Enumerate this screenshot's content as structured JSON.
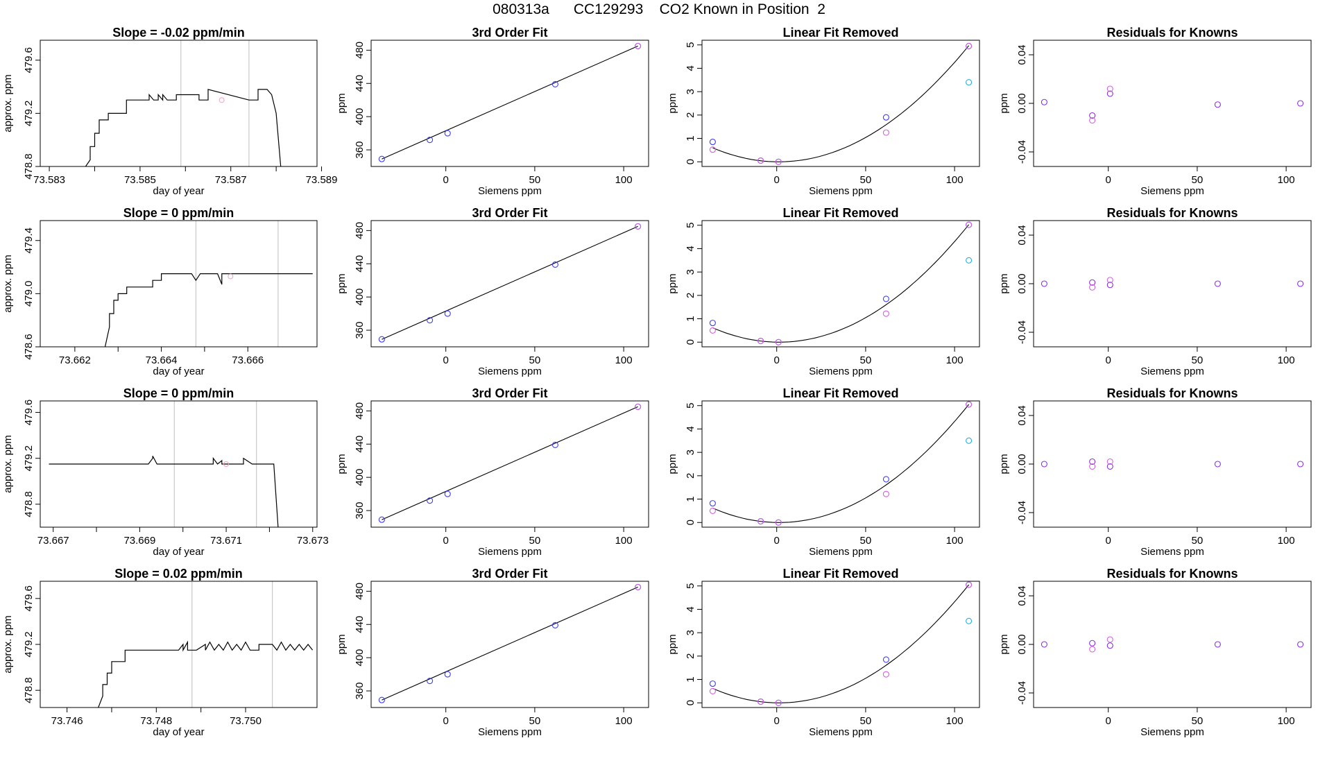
{
  "figure": {
    "title": "080313a      CC129293    CO2 Known in Position  2"
  },
  "colors": {
    "axis": "#000000",
    "trace": "#000000",
    "vline": "#c8c8c8",
    "fit_line": "#000000",
    "marker_blue": "#3c3cff",
    "marker_magenta": "#d060e0",
    "marker_cyan": "#20b0e0",
    "marker_pink": "#f2a0c0",
    "marker_purple": "#8a2be2"
  },
  "chart_data": [
    {
      "type": "line",
      "panel": "time",
      "row": 0,
      "title": "Slope =  -0.02  ppm/min",
      "xlabel": "day of year",
      "ylabel": "approx. ppm",
      "xlim": [
        73.5828,
        73.5889
      ],
      "ylim": [
        478.8,
        479.75
      ],
      "xticks": [
        73.583,
        73.585,
        73.587,
        73.589
      ],
      "xtick_labels": [
        "73.583",
        "73.585",
        "73.587",
        "73.589"
      ],
      "yticks": [
        478.8,
        479.2,
        479.6
      ],
      "ytick_labels": [
        "478.8",
        "479.2",
        "479.6"
      ],
      "vlines": [
        73.5859,
        73.5874
      ],
      "marker": {
        "x": 73.5868,
        "y": 479.3
      },
      "x": [
        73.5838,
        73.5839,
        73.5839,
        73.584,
        73.584,
        73.5841,
        73.5841,
        73.5843,
        73.5843,
        73.5847,
        73.5847,
        73.5848,
        73.5852,
        73.5852,
        73.5853,
        73.5854,
        73.5854,
        73.5855,
        73.5855,
        73.5856,
        73.5858,
        73.5858,
        73.5863,
        73.5863,
        73.5865,
        73.5865,
        73.5874,
        73.5876,
        73.5876,
        73.5878,
        73.5878,
        73.5879,
        73.588,
        73.5881
      ],
      "y": [
        478.8,
        478.85,
        478.95,
        478.95,
        479.05,
        479.05,
        479.15,
        479.15,
        479.2,
        479.2,
        479.3,
        479.3,
        479.3,
        479.34,
        479.3,
        479.3,
        479.34,
        479.3,
        479.34,
        479.3,
        479.3,
        479.34,
        479.34,
        479.3,
        479.3,
        479.38,
        479.3,
        479.3,
        479.38,
        479.38,
        479.38,
        479.34,
        479.2,
        478.8
      ]
    },
    {
      "type": "line",
      "panel": "time",
      "row": 1,
      "title": "Slope =  0  ppm/min",
      "xlabel": "day of year",
      "ylabel": "approx. ppm",
      "xlim": [
        73.6612,
        73.6676
      ],
      "ylim": [
        478.6,
        479.55
      ],
      "xticks": [
        73.662,
        73.664,
        73.666
      ],
      "xtick_labels": [
        "73.662",
        "73.664",
        "73.666"
      ],
      "yticks": [
        478.6,
        479.0,
        479.4
      ],
      "ytick_labels": [
        "478.6",
        "479.0",
        "479.4"
      ],
      "vlines": [
        73.6648,
        73.6667
      ],
      "marker": {
        "x": 73.6656,
        "y": 479.13
      },
      "x": [
        73.6627,
        73.6628,
        73.6628,
        73.6629,
        73.6629,
        73.663,
        73.663,
        73.6632,
        73.6632,
        73.6638,
        73.6638,
        73.664,
        73.664,
        73.6647,
        73.6648,
        73.6649,
        73.6649,
        73.6653,
        73.6654,
        73.6654,
        73.6655,
        73.6675
      ],
      "y": [
        478.6,
        478.75,
        478.85,
        478.85,
        478.95,
        478.95,
        479.0,
        479.0,
        479.05,
        479.05,
        479.1,
        479.1,
        479.15,
        479.15,
        479.1,
        479.15,
        479.15,
        479.15,
        479.07,
        479.15,
        479.15,
        479.15
      ]
    },
    {
      "type": "line",
      "panel": "time",
      "row": 2,
      "title": "Slope =  0  ppm/min",
      "xlabel": "day of year",
      "ylabel": "approx. ppm",
      "xlim": [
        73.6667,
        73.6731
      ],
      "ylim": [
        478.6,
        479.7
      ],
      "xticks": [
        73.667,
        73.669,
        73.671,
        73.673
      ],
      "xtick_labels": [
        "73.667",
        "73.669",
        "73.671",
        "73.673"
      ],
      "yticks": [
        478.8,
        479.2,
        479.6
      ],
      "ytick_labels": [
        "478.8",
        "479.2",
        "479.6"
      ],
      "vlines": [
        73.6698,
        73.6717
      ],
      "marker": {
        "x": 73.671,
        "y": 479.15
      },
      "x": [
        73.6669,
        73.6692,
        73.6693,
        73.6693,
        73.6694,
        73.6707,
        73.6707,
        73.6708,
        73.6709,
        73.6709,
        73.6714,
        73.6714,
        73.6716,
        73.6721,
        73.6722
      ],
      "y": [
        479.15,
        479.15,
        479.2,
        479.22,
        479.15,
        479.15,
        479.2,
        479.15,
        479.18,
        479.15,
        479.15,
        479.2,
        479.15,
        479.15,
        478.6
      ]
    },
    {
      "type": "line",
      "panel": "time",
      "row": 3,
      "title": "Slope =  0.02  ppm/min",
      "xlabel": "day of year",
      "ylabel": "approx. ppm",
      "xlim": [
        73.7454,
        73.7516
      ],
      "ylim": [
        478.65,
        479.75
      ],
      "xticks": [
        73.746,
        73.748,
        73.75
      ],
      "xtick_labels": [
        "73.746",
        "73.748",
        "73.750"
      ],
      "yticks": [
        478.8,
        479.2,
        479.6
      ],
      "ytick_labels": [
        "478.8",
        "479.2",
        "479.6"
      ],
      "vlines": [
        73.7488,
        73.7506
      ],
      "x": [
        73.7467,
        73.7468,
        73.7468,
        73.7469,
        73.7469,
        73.747,
        73.747,
        73.7473,
        73.7473,
        73.7485,
        73.7486,
        73.7486,
        73.7487,
        73.7487,
        73.7489,
        73.7491,
        73.7491,
        73.7492,
        73.7493,
        73.7494,
        73.7495,
        73.7496,
        73.7497,
        73.7498,
        73.7499,
        73.75,
        73.7501,
        73.7503,
        73.7503,
        73.7506,
        73.7507,
        73.7508,
        73.7509,
        73.751,
        73.7511,
        73.7512,
        73.7513,
        73.7514,
        73.7515
      ],
      "y": [
        478.65,
        478.75,
        478.85,
        478.85,
        478.95,
        478.95,
        479.05,
        479.05,
        479.15,
        479.15,
        479.2,
        479.15,
        479.22,
        479.15,
        479.15,
        479.2,
        479.15,
        479.22,
        479.15,
        479.2,
        479.15,
        479.22,
        479.15,
        479.2,
        479.15,
        479.22,
        479.15,
        479.15,
        479.2,
        479.2,
        479.15,
        479.22,
        479.15,
        479.2,
        479.15,
        479.2,
        479.15,
        479.2,
        479.15
      ]
    },
    {
      "type": "scatter",
      "panel": "fit",
      "row": 0,
      "title": "3rd Order Fit",
      "xlabel": "Siemens ppm",
      "ylabel": "ppm",
      "xlim": [
        -42,
        114
      ],
      "ylim": [
        340,
        492
      ],
      "xticks": [
        0,
        50,
        100
      ],
      "yticks": [
        360,
        400,
        440,
        480
      ],
      "x": [
        -36,
        -9,
        1,
        61.5,
        108
      ],
      "y": [
        349,
        372,
        380,
        439,
        485
      ],
      "fit": "line"
    },
    {
      "type": "scatter",
      "panel": "fit",
      "row": 1,
      "title": "3rd Order Fit",
      "xlabel": "Siemens ppm",
      "ylabel": "ppm",
      "xlim": [
        -42,
        114
      ],
      "ylim": [
        340,
        492
      ],
      "xticks": [
        0,
        50,
        100
      ],
      "yticks": [
        360,
        400,
        440,
        480
      ],
      "x": [
        -36,
        -9,
        1,
        61.5,
        108
      ],
      "y": [
        349,
        372,
        380,
        439,
        485
      ],
      "fit": "line"
    },
    {
      "type": "scatter",
      "panel": "fit",
      "row": 2,
      "title": "3rd Order Fit",
      "xlabel": "Siemens ppm",
      "ylabel": "ppm",
      "xlim": [
        -42,
        114
      ],
      "ylim": [
        340,
        492
      ],
      "xticks": [
        0,
        50,
        100
      ],
      "yticks": [
        360,
        400,
        440,
        480
      ],
      "x": [
        -36,
        -9,
        1,
        61.5,
        108
      ],
      "y": [
        349,
        372,
        380,
        439,
        485
      ],
      "fit": "line"
    },
    {
      "type": "scatter",
      "panel": "fit",
      "row": 3,
      "title": "3rd Order Fit",
      "xlabel": "Siemens ppm",
      "ylabel": "ppm",
      "xlim": [
        -42,
        114
      ],
      "ylim": [
        340,
        492
      ],
      "xticks": [
        0,
        50,
        100
      ],
      "yticks": [
        360,
        400,
        440,
        480
      ],
      "x": [
        -36,
        -9,
        1,
        61.5,
        108
      ],
      "y": [
        349,
        372,
        380,
        439,
        485
      ],
      "fit": "line"
    },
    {
      "type": "scatter",
      "panel": "linear",
      "row": 0,
      "title": "Linear Fit Removed",
      "xlabel": "Siemens ppm",
      "ylabel": "ppm",
      "xlim": [
        -42,
        114
      ],
      "ylim": [
        -0.2,
        5.2
      ],
      "xticks": [
        0,
        50,
        100
      ],
      "yticks": [
        0,
        1,
        2,
        3,
        4,
        5
      ],
      "series": [
        {
          "name": "",
          "color": "blue",
          "x": [
            -36,
            -9,
            1,
            61.5,
            108
          ],
          "y": [
            0.85,
            0.05,
            0,
            1.9,
            4.95
          ]
        },
        {
          "name": "",
          "color": "magenta",
          "x": [
            -36,
            -9,
            1,
            61.5,
            108
          ],
          "y": [
            0.52,
            0.05,
            0,
            1.25,
            4.95
          ]
        },
        {
          "name": "",
          "color": "cyan",
          "x": [
            108
          ],
          "y": [
            3.4
          ]
        }
      ],
      "curve": {
        "a": 0.000435,
        "b": -0.00096,
        "c": 0.0,
        "from": -36,
        "to": 108
      }
    },
    {
      "type": "scatter",
      "panel": "linear",
      "row": 1,
      "title": "Linear Fit Removed",
      "xlabel": "Siemens ppm",
      "ylabel": "ppm",
      "xlim": [
        -42,
        114
      ],
      "ylim": [
        -0.2,
        5.2
      ],
      "xticks": [
        0,
        50,
        100
      ],
      "yticks": [
        0,
        1,
        2,
        3,
        4,
        5
      ],
      "series": [
        {
          "name": "",
          "color": "blue",
          "x": [
            -36,
            -9,
            1,
            61.5,
            108
          ],
          "y": [
            0.82,
            0.05,
            0,
            1.85,
            5.02
          ]
        },
        {
          "name": "",
          "color": "magenta",
          "x": [
            -36,
            -9,
            1,
            61.5,
            108
          ],
          "y": [
            0.5,
            0.05,
            0,
            1.22,
            5.02
          ]
        },
        {
          "name": "",
          "color": "cyan",
          "x": [
            108
          ],
          "y": [
            3.5
          ]
        }
      ],
      "curve": {
        "a": 0.000442,
        "b": -0.00118,
        "c": 0.0,
        "from": -36,
        "to": 108
      }
    },
    {
      "type": "scatter",
      "panel": "linear",
      "row": 2,
      "title": "Linear Fit Removed",
      "xlabel": "Siemens ppm",
      "ylabel": "ppm",
      "xlim": [
        -42,
        114
      ],
      "ylim": [
        -0.2,
        5.2
      ],
      "xticks": [
        0,
        50,
        100
      ],
      "yticks": [
        0,
        1,
        2,
        3,
        4,
        5
      ],
      "series": [
        {
          "name": "",
          "color": "blue",
          "x": [
            -36,
            -9,
            1,
            61.5,
            108
          ],
          "y": [
            0.82,
            0.05,
            0,
            1.85,
            5.05
          ]
        },
        {
          "name": "",
          "color": "magenta",
          "x": [
            -36,
            -9,
            1,
            61.5,
            108
          ],
          "y": [
            0.5,
            0.05,
            0,
            1.22,
            5.05
          ]
        },
        {
          "name": "",
          "color": "cyan",
          "x": [
            108
          ],
          "y": [
            3.5
          ]
        }
      ],
      "curve": {
        "a": 0.000444,
        "b": -0.00118,
        "c": 0.0,
        "from": -36,
        "to": 108
      }
    },
    {
      "type": "scatter",
      "panel": "linear",
      "row": 3,
      "title": "Linear Fit Removed",
      "xlabel": "Siemens ppm",
      "ylabel": "ppm",
      "xlim": [
        -42,
        114
      ],
      "ylim": [
        -0.2,
        5.2
      ],
      "xticks": [
        0,
        50,
        100
      ],
      "yticks": [
        0,
        1,
        2,
        3,
        4,
        5
      ],
      "series": [
        {
          "name": "",
          "color": "blue",
          "x": [
            -36,
            -9,
            1,
            61.5,
            108
          ],
          "y": [
            0.82,
            0.05,
            0,
            1.85,
            5.05
          ]
        },
        {
          "name": "",
          "color": "magenta",
          "x": [
            -36,
            -9,
            1,
            61.5,
            108
          ],
          "y": [
            0.5,
            0.05,
            0,
            1.22,
            5.05
          ]
        },
        {
          "name": "",
          "color": "cyan",
          "x": [
            108
          ],
          "y": [
            3.5
          ]
        }
      ],
      "curve": {
        "a": 0.000444,
        "b": -0.00118,
        "c": 0.0,
        "from": -36,
        "to": 108
      }
    },
    {
      "type": "scatter",
      "panel": "residuals",
      "row": 0,
      "title": "Residuals for Knowns",
      "xlabel": "Siemens ppm",
      "ylabel": "ppm",
      "xlim": [
        -42,
        114
      ],
      "ylim": [
        -0.052,
        0.052
      ],
      "xticks": [
        0,
        50,
        100
      ],
      "yticks": [
        -0.04,
        0,
        0.04
      ],
      "ytick_labels": [
        "-0.04",
        "0.00",
        "0.04"
      ],
      "series": [
        {
          "name": "",
          "color": "purple",
          "x": [
            -36,
            -9,
            1,
            61.5,
            108
          ],
          "y": [
            0.001,
            -0.01,
            0.008,
            -0.001,
            0.0
          ]
        },
        {
          "name": "",
          "color": "magenta",
          "x": [
            -9,
            1
          ],
          "y": [
            -0.014,
            0.012
          ]
        }
      ]
    },
    {
      "type": "scatter",
      "panel": "residuals",
      "row": 1,
      "title": "Residuals for Knowns",
      "xlabel": "Siemens ppm",
      "ylabel": "ppm",
      "xlim": [
        -42,
        114
      ],
      "ylim": [
        -0.052,
        0.052
      ],
      "xticks": [
        0,
        50,
        100
      ],
      "yticks": [
        -0.04,
        0,
        0.04
      ],
      "ytick_labels": [
        "-0.04",
        "0.00",
        "0.04"
      ],
      "series": [
        {
          "name": "",
          "color": "purple",
          "x": [
            -36,
            -9,
            1,
            61.5,
            108
          ],
          "y": [
            0.0,
            0.001,
            -0.001,
            0.0,
            0.0
          ]
        },
        {
          "name": "",
          "color": "magenta",
          "x": [
            -9,
            1
          ],
          "y": [
            -0.003,
            0.003
          ]
        }
      ]
    },
    {
      "type": "scatter",
      "panel": "residuals",
      "row": 2,
      "title": "Residuals for Knowns",
      "xlabel": "Siemens ppm",
      "ylabel": "ppm",
      "xlim": [
        -42,
        114
      ],
      "ylim": [
        -0.052,
        0.052
      ],
      "xticks": [
        0,
        50,
        100
      ],
      "yticks": [
        -0.04,
        0,
        0.04
      ],
      "ytick_labels": [
        "-0.04",
        "0.00",
        "0.04"
      ],
      "series": [
        {
          "name": "",
          "color": "purple",
          "x": [
            -36,
            -9,
            1,
            61.5,
            108
          ],
          "y": [
            0.0,
            0.002,
            -0.002,
            0.0,
            0.0
          ]
        },
        {
          "name": "",
          "color": "magenta",
          "x": [
            -9,
            1
          ],
          "y": [
            -0.002,
            0.002
          ]
        }
      ]
    },
    {
      "type": "scatter",
      "panel": "residuals",
      "row": 3,
      "title": "Residuals for Knowns",
      "xlabel": "Siemens ppm",
      "ylabel": "ppm",
      "xlim": [
        -42,
        114
      ],
      "ylim": [
        -0.052,
        0.052
      ],
      "xticks": [
        0,
        50,
        100
      ],
      "yticks": [
        -0.04,
        0,
        0.04
      ],
      "ytick_labels": [
        "-0.04",
        "0.00",
        "0.04"
      ],
      "series": [
        {
          "name": "",
          "color": "purple",
          "x": [
            -36,
            -9,
            1,
            61.5,
            108
          ],
          "y": [
            0.0,
            0.001,
            -0.001,
            0.0,
            0.0
          ]
        },
        {
          "name": "",
          "color": "magenta",
          "x": [
            -9,
            1
          ],
          "y": [
            -0.004,
            0.004
          ]
        }
      ]
    }
  ]
}
